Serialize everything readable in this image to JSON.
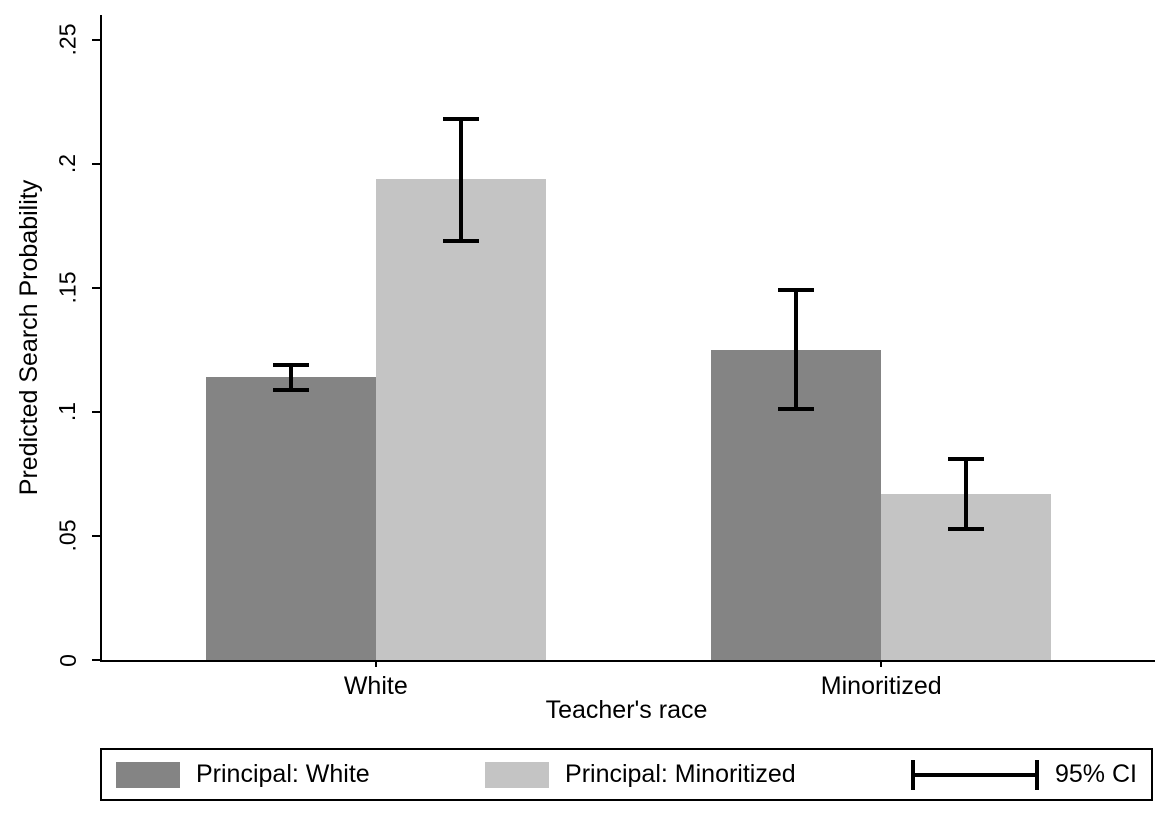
{
  "chart_data": {
    "type": "bar",
    "title": "",
    "xlabel": "Teacher's race",
    "ylabel": "Predicted Search Probability",
    "categories": [
      "White",
      "Minoritized"
    ],
    "series": [
      {
        "name": "Principal: White",
        "color": "#848484",
        "values": [
          0.114,
          0.125
        ],
        "ci_low": [
          0.109,
          0.101
        ],
        "ci_high": [
          0.119,
          0.149
        ]
      },
      {
        "name": "Principal: Minoritized",
        "color": "#c4c4c4",
        "values": [
          0.194,
          0.067
        ],
        "ci_low": [
          0.169,
          0.053
        ],
        "ci_high": [
          0.218,
          0.081
        ]
      }
    ],
    "ylim": [
      0,
      0.26
    ],
    "yticks": [
      {
        "value": 0,
        "label": "0"
      },
      {
        "value": 0.05,
        "label": ".05"
      },
      {
        "value": 0.1,
        "label": ".1"
      },
      {
        "value": 0.15,
        "label": ".15"
      },
      {
        "value": 0.2,
        "label": ".2"
      },
      {
        "value": 0.25,
        "label": ".25"
      }
    ],
    "grid": false,
    "legend_position": "bottom",
    "ci_label": "95% CI",
    "error_color": "#000000"
  }
}
